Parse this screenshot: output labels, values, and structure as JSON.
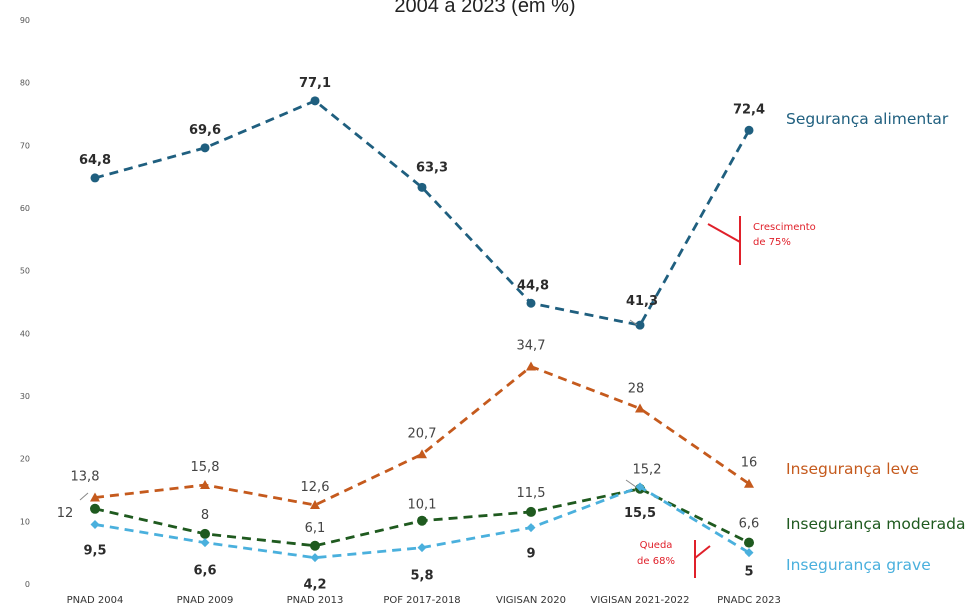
{
  "chart_data": {
    "type": "line",
    "title": "2004 a 2023 (em %)",
    "xlabel": "",
    "ylabel": "",
    "ylim": [
      0,
      90
    ],
    "yticks": [
      0,
      10,
      20,
      30,
      40,
      50,
      60,
      70,
      80,
      90
    ],
    "grid": false,
    "legend": "right (labels at line ends)",
    "categories": [
      "PNAD 2004",
      "PNAD 2009",
      "PNAD 2013",
      "POF 2017-2018",
      "VIGISAN 2020",
      "VIGISAN 2021-2022",
      "PNADC 2023"
    ],
    "series": [
      {
        "name": "Segurança alimentar",
        "color": "#1f5f7f",
        "marker": "circle",
        "values": [
          64.8,
          69.6,
          77.1,
          63.3,
          44.8,
          41.3,
          72.4
        ],
        "labels": [
          "64,8",
          "69,6",
          "77,1",
          "63,3",
          "44,8",
          "41,3",
          "72,4"
        ]
      },
      {
        "name": "Insegurança leve",
        "color": "#c55a1d",
        "marker": "triangle",
        "values": [
          13.8,
          15.8,
          12.6,
          20.7,
          34.7,
          28,
          16
        ],
        "labels": [
          "13,8",
          "15,8",
          "12,6",
          "20,7",
          "34,7",
          "28",
          "16"
        ]
      },
      {
        "name": "Insegurança moderada",
        "color": "#1f5a1f",
        "marker": "circle",
        "values": [
          12,
          8,
          6.1,
          10.1,
          11.5,
          15.2,
          6.6
        ],
        "labels": [
          "12",
          "8",
          "6,1",
          "10,1",
          "11,5",
          "15,2",
          "6,6"
        ]
      },
      {
        "name": "Insegurança grave",
        "color": "#4ab0dd",
        "marker": "diamond",
        "values": [
          9.5,
          6.6,
          4.2,
          5.8,
          9,
          15.5,
          5
        ],
        "labels": [
          "9,5",
          "6,6",
          "4,2",
          "5,8",
          "9",
          "15,5",
          "5"
        ]
      }
    ],
    "annotations": [
      {
        "text_lines": [
          "Crescimento",
          "de 75%"
        ],
        "color": "#e0202a"
      },
      {
        "text_lines": [
          "Queda",
          "de 68%"
        ],
        "color": "#e0202a"
      }
    ]
  }
}
